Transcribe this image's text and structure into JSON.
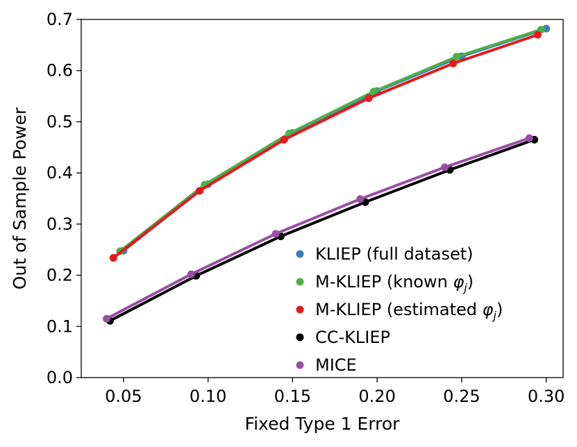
{
  "chart_data": {
    "type": "line",
    "title": "",
    "xlabel": "Fixed Type 1 Error",
    "ylabel": "Out of Sample Power",
    "xlim": [
      0.025,
      0.31
    ],
    "ylim": [
      0.0,
      0.7
    ],
    "xticks": [
      0.05,
      0.1,
      0.15,
      0.2,
      0.25,
      0.3
    ],
    "xtick_labels": [
      "0.05",
      "0.10",
      "0.15",
      "0.20",
      "0.25",
      "0.30"
    ],
    "yticks": [
      0.0,
      0.1,
      0.2,
      0.3,
      0.4,
      0.5,
      0.6,
      0.7
    ],
    "ytick_labels": [
      "0.0",
      "0.1",
      "0.2",
      "0.3",
      "0.4",
      "0.5",
      "0.6",
      "0.7"
    ],
    "grid": false,
    "legend_position": "lower-right",
    "series": [
      {
        "name": "KLIEP (full dataset)",
        "legend_prefix": "KLIEP (full dataset)",
        "legend_math": "",
        "legend_suffix": "",
        "color": "#3a7ebf",
        "x": [
          0.05,
          0.1,
          0.15,
          0.2,
          0.25,
          0.3
        ],
        "y": [
          0.248,
          0.378,
          0.478,
          0.56,
          0.628,
          0.682
        ]
      },
      {
        "name": "M-KLIEP (known φj)",
        "legend_prefix": "M-KLIEP (known ",
        "legend_math": "φ",
        "legend_math_sub": "j",
        "legend_suffix": ")",
        "color": "#4daf4a",
        "x": [
          0.048,
          0.098,
          0.148,
          0.198,
          0.247,
          0.297
        ],
        "y": [
          0.247,
          0.377,
          0.477,
          0.559,
          0.627,
          0.68
        ]
      },
      {
        "name": "M-KLIEP (estimated φj)",
        "legend_prefix": "M-KLIEP (estimated ",
        "legend_math": "φ",
        "legend_math_sub": "j",
        "legend_suffix": ")",
        "color": "#e41a1c",
        "x": [
          0.044,
          0.095,
          0.145,
          0.195,
          0.245,
          0.295
        ],
        "y": [
          0.234,
          0.365,
          0.465,
          0.546,
          0.614,
          0.67
        ]
      },
      {
        "name": "CC-KLIEP",
        "legend_prefix": "CC-KLIEP",
        "legend_math": "",
        "legend_suffix": "",
        "color": "#000000",
        "x": [
          0.042,
          0.093,
          0.143,
          0.193,
          0.243,
          0.293
        ],
        "y": [
          0.111,
          0.199,
          0.276,
          0.343,
          0.406,
          0.465
        ]
      },
      {
        "name": "MICE",
        "legend_prefix": "MICE",
        "legend_math": "",
        "legend_suffix": "",
        "color": "#984ea3",
        "x": [
          0.04,
          0.09,
          0.14,
          0.19,
          0.24,
          0.29
        ],
        "y": [
          0.115,
          0.202,
          0.281,
          0.349,
          0.411,
          0.468
        ]
      }
    ]
  }
}
